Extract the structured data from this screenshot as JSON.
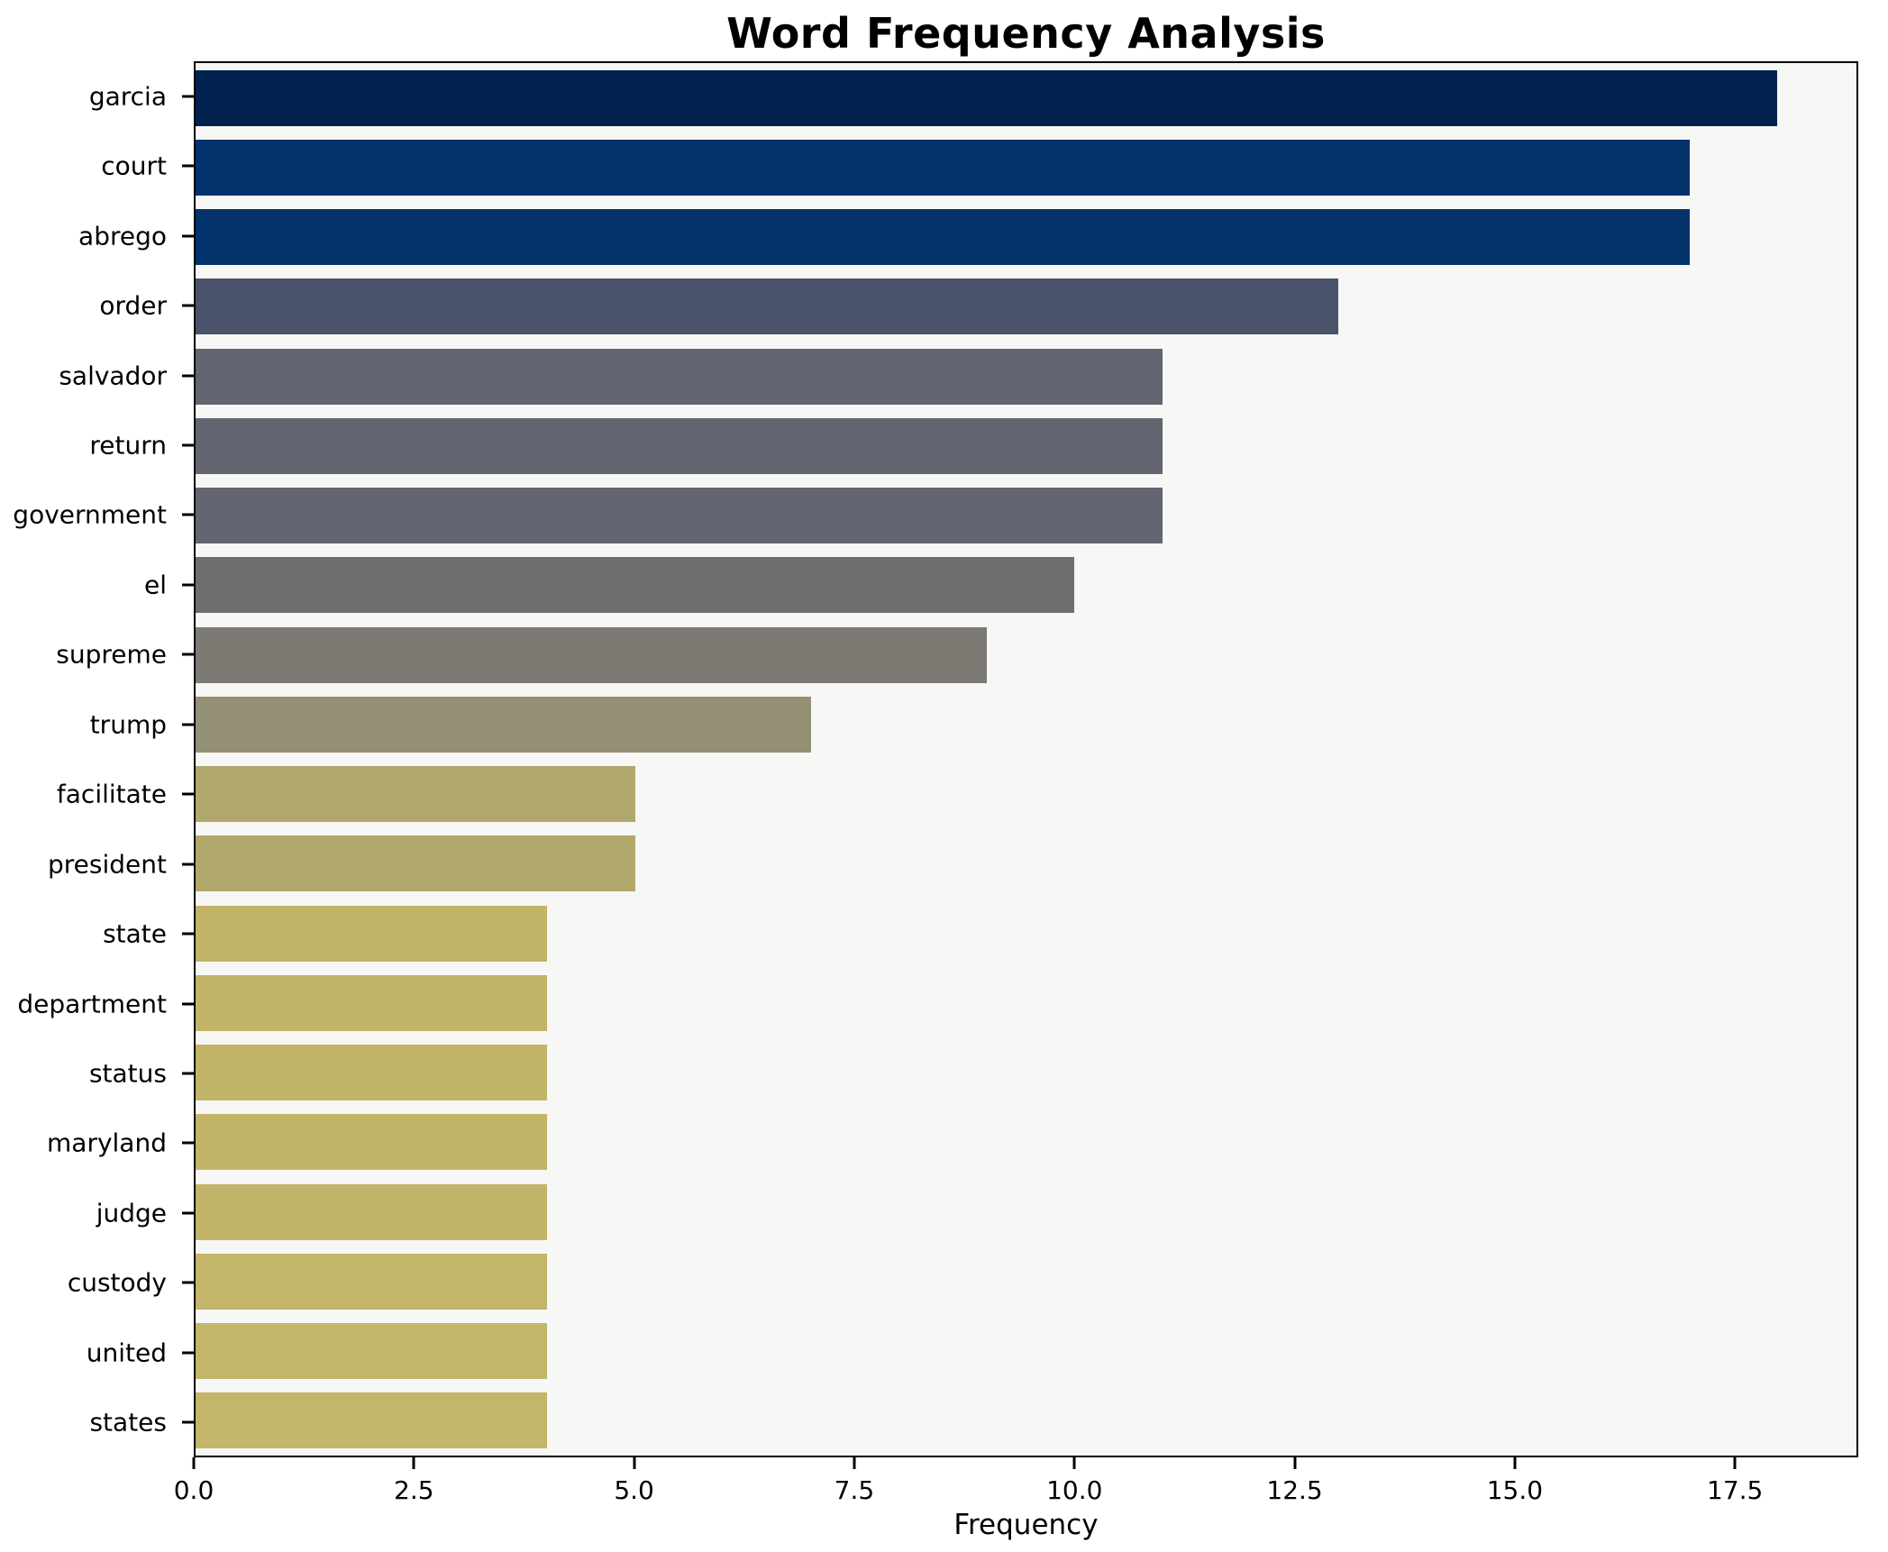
{
  "chart_data": {
    "type": "bar",
    "orientation": "horizontal",
    "title": "Word Frequency Analysis",
    "xlabel": "Frequency",
    "ylabel": "",
    "categories": [
      "garcia",
      "court",
      "abrego",
      "order",
      "salvador",
      "return",
      "government",
      "el",
      "supreme",
      "trump",
      "facilitate",
      "president",
      "state",
      "department",
      "status",
      "maryland",
      "judge",
      "custody",
      "united",
      "states"
    ],
    "values": [
      18,
      17,
      17,
      13,
      11,
      11,
      11,
      10,
      9,
      7,
      5,
      5,
      4,
      4,
      4,
      4,
      4,
      4,
      4,
      4
    ],
    "bar_colors": [
      "#01224e",
      "#04336c",
      "#04336c",
      "#4a536b",
      "#636570",
      "#636570",
      "#636570",
      "#6e6e70",
      "#7c7a73",
      "#949076",
      "#b2a76c",
      "#b2a76c",
      "#c2b468",
      "#c2b468",
      "#c2b468",
      "#c2b468",
      "#c2b468",
      "#c3b569",
      "#c3b569",
      "#c3b569"
    ],
    "xlim": [
      0,
      18.9
    ],
    "xticks": [
      "0.0",
      "2.5",
      "5.0",
      "7.5",
      "10.0",
      "12.5",
      "15.0",
      "17.5"
    ],
    "grid": false,
    "legend_position": "none",
    "plot_bg": "#f7f7f5",
    "figure_bg": "#ffffff",
    "spine_color": "#000000"
  }
}
